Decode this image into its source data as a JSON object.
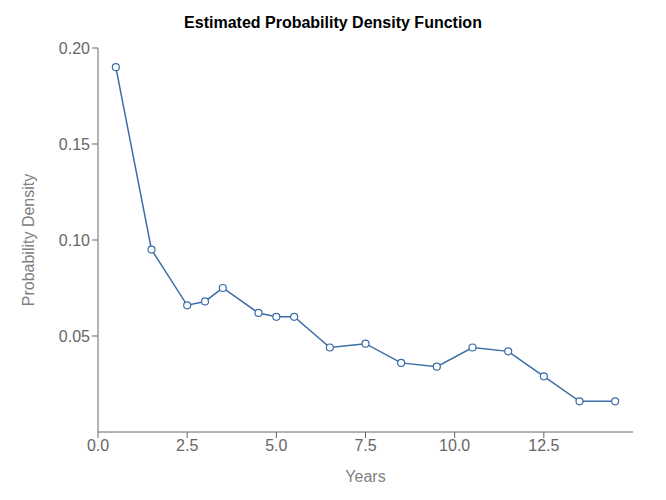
{
  "chart_data": {
    "type": "line",
    "title": "Estimated Probability Density Function",
    "x_label": "Years",
    "y_label": "Probability Density",
    "x": [
      0.5,
      1.5,
      2.5,
      3.0,
      3.5,
      4.5,
      5.0,
      5.5,
      6.5,
      7.5,
      8.5,
      9.5,
      10.5,
      11.5,
      12.5,
      13.5,
      14.5
    ],
    "values": [
      0.19,
      0.095,
      0.066,
      0.068,
      0.075,
      0.062,
      0.06,
      0.06,
      0.044,
      0.046,
      0.036,
      0.034,
      0.044,
      0.042,
      0.029,
      0.016,
      0.016
    ],
    "color": "#3A6EA5",
    "marker": "circle",
    "xlim": [
      0,
      15.0
    ],
    "ylim": [
      0,
      0.2
    ],
    "xticks": [
      {
        "value": 0,
        "label": "0.0"
      },
      2.5,
      {
        "value": 5,
        "label": "5.0"
      },
      7.5,
      {
        "value": 10,
        "label": "10.0"
      },
      12.5
    ],
    "yticks": [
      0.05,
      {
        "value": 0.1,
        "label": "0.10"
      },
      0.15,
      {
        "value": 0.2,
        "label": "0.20"
      }
    ],
    "grid": false
  }
}
